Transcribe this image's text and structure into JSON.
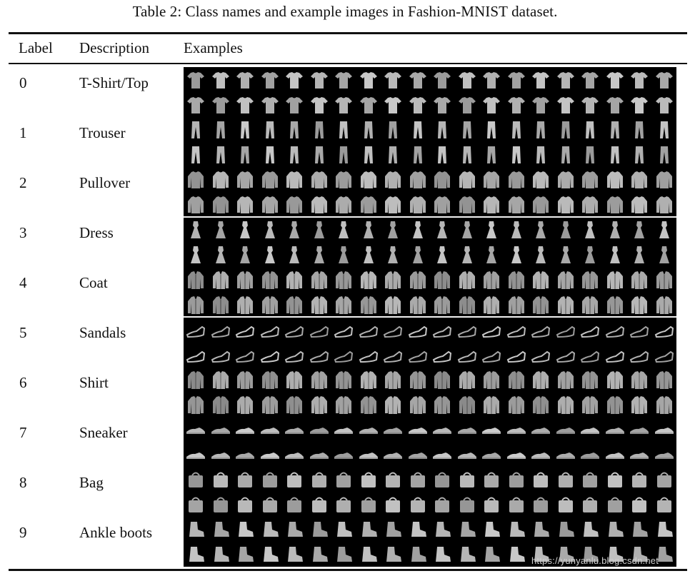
{
  "caption": "Table 2: Class names and example images in Fashion-MNIST dataset.",
  "columns": {
    "label": "Label",
    "description": "Description",
    "examples": "Examples"
  },
  "rows": [
    {
      "label": "0",
      "description": "T-Shirt/Top",
      "icon": "tshirt-icon"
    },
    {
      "label": "1",
      "description": "Trouser",
      "icon": "trouser-icon"
    },
    {
      "label": "2",
      "description": "Pullover",
      "icon": "pullover-icon"
    },
    {
      "label": "3",
      "description": "Dress",
      "icon": "dress-icon"
    },
    {
      "label": "4",
      "description": "Coat",
      "icon": "coat-icon"
    },
    {
      "label": "5",
      "description": "Sandals",
      "icon": "sandal-icon"
    },
    {
      "label": "6",
      "description": "Shirt",
      "icon": "shirt-icon"
    },
    {
      "label": "7",
      "description": "Sneaker",
      "icon": "sneaker-icon"
    },
    {
      "label": "8",
      "description": "Bag",
      "icon": "bag-icon"
    },
    {
      "label": "9",
      "description": "Ankle boots",
      "icon": "ankle-boot-icon"
    }
  ],
  "examples_per_row": 20,
  "example_image_rows_per_class": 2,
  "watermark": "https://yunyanlu.blog.csdn.net",
  "colors": {
    "grid_background": "#000000",
    "rule": "#111111",
    "separator": "#f2f2f2"
  }
}
